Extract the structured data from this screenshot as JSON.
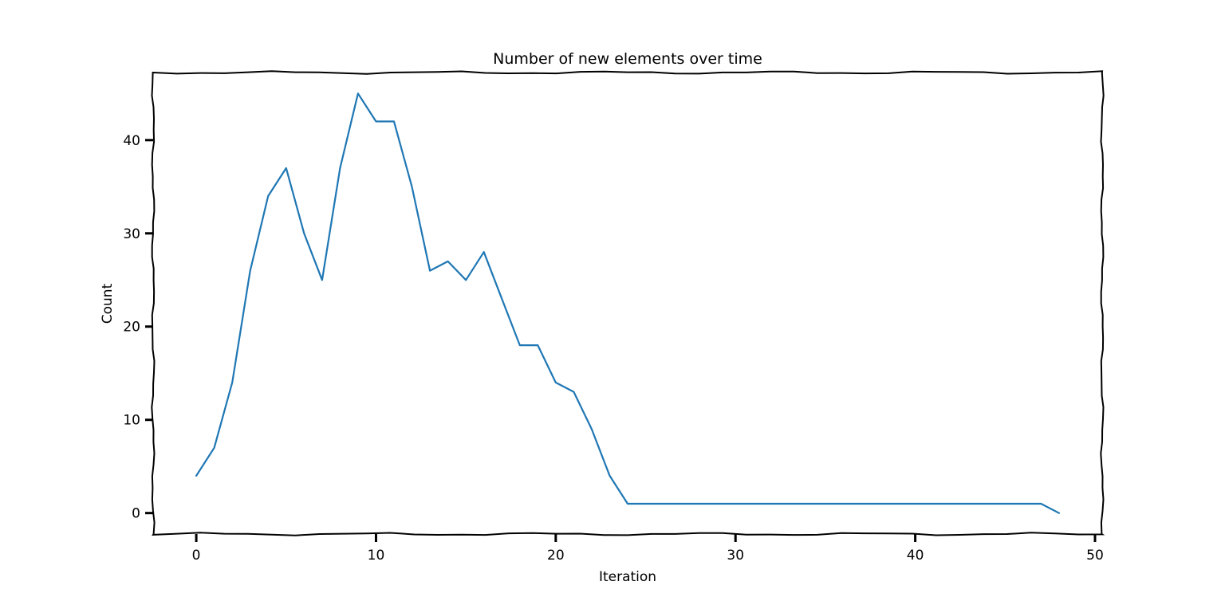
{
  "chart_data": {
    "type": "line",
    "title": "Number of new elements over time",
    "xlabel": "Iteration",
    "ylabel": "Count",
    "xlim": [
      -2.4,
      50.4
    ],
    "ylim": [
      -2.25,
      47.25
    ],
    "xticks": [
      0,
      10,
      20,
      30,
      40,
      50
    ],
    "yticks": [
      0,
      10,
      20,
      30,
      40
    ],
    "grid": false,
    "legend": "none",
    "series": [
      {
        "color": "#1f77b4",
        "x": [
          0,
          1,
          2,
          3,
          4,
          5,
          6,
          7,
          8,
          9,
          10,
          11,
          12,
          13,
          14,
          15,
          16,
          17,
          18,
          19,
          20,
          21,
          22,
          23,
          24,
          25,
          26,
          27,
          28,
          29,
          30,
          31,
          32,
          33,
          34,
          35,
          36,
          37,
          38,
          39,
          40,
          41,
          42,
          43,
          44,
          45,
          46,
          47,
          48
        ],
        "values": [
          4,
          7,
          14,
          26,
          34,
          37,
          30,
          25,
          37,
          45,
          42,
          42,
          35,
          26,
          27,
          25,
          28,
          23,
          18,
          18,
          14,
          13,
          9,
          4,
          1,
          1,
          1,
          1,
          1,
          1,
          1,
          1,
          1,
          1,
          1,
          1,
          1,
          1,
          1,
          1,
          1,
          1,
          1,
          1,
          1,
          1,
          1,
          1,
          0
        ]
      }
    ]
  }
}
